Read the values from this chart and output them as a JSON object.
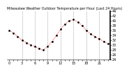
{
  "title": "Milwaukee Weather Outdoor Temperature per Hour (Last 24 Hours)",
  "hours": [
    0,
    1,
    2,
    3,
    4,
    5,
    6,
    7,
    8,
    9,
    10,
    11,
    12,
    13,
    14,
    15,
    16,
    17,
    18,
    19,
    20,
    21,
    22,
    23
  ],
  "temps": [
    36.0,
    35.0,
    33.5,
    32.0,
    31.0,
    30.0,
    29.5,
    28.5,
    28.0,
    29.5,
    31.5,
    34.0,
    36.5,
    38.5,
    40.0,
    40.5,
    39.5,
    38.0,
    36.0,
    34.5,
    33.5,
    32.5,
    31.5,
    30.5
  ],
  "line_color": "#FF0000",
  "marker_color": "#000000",
  "grid_color": "#999999",
  "bg_color": "#FFFFFF",
  "ylim": [
    24,
    44
  ],
  "yticks": [
    24,
    26,
    28,
    30,
    32,
    34,
    36,
    38,
    40,
    42,
    44
  ],
  "tick_fontsize": 3.5,
  "title_fontsize": 3.5,
  "grid_hours": [
    3,
    6,
    9,
    12,
    15,
    18,
    21
  ],
  "xtick_labels": [
    "0",
    "",
    "",
    "3",
    "",
    "",
    "6",
    "",
    "",
    "9",
    "",
    "",
    "12",
    "",
    "",
    "15",
    "",
    "",
    "18",
    "",
    "",
    "21",
    "",
    ""
  ]
}
